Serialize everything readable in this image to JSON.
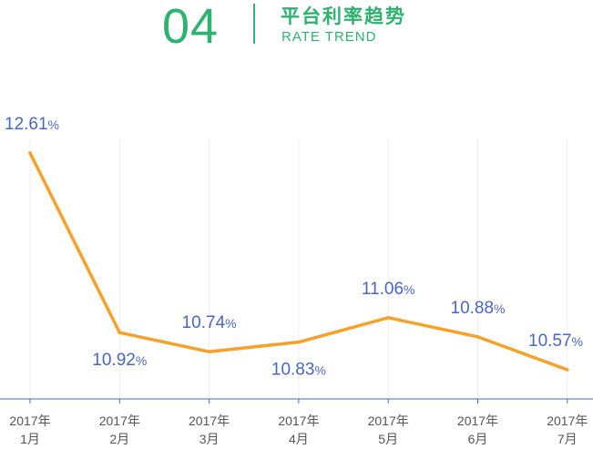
{
  "header": {
    "number": "04",
    "title": "平台利率趋势",
    "subtitle": "RATE TREND"
  },
  "colors": {
    "accent": "#2db36f",
    "line": "#f7a02a",
    "label": "#4a66c4",
    "axis": "#4a66c4",
    "grid": "#eeeeee",
    "tick_text": "#555555"
  },
  "chart_data": {
    "type": "line",
    "title": "",
    "xlabel": "",
    "ylabel": "",
    "grid": true,
    "categories": [
      [
        "2017年",
        "1月"
      ],
      [
        "2017年",
        "2月"
      ],
      [
        "2017年",
        "3月"
      ],
      [
        "2017年",
        "4月"
      ],
      [
        "2017年",
        "5月"
      ],
      [
        "2017年",
        "6月"
      ],
      [
        "2017年",
        "7月"
      ]
    ],
    "values": [
      12.61,
      10.92,
      10.74,
      10.83,
      11.06,
      10.88,
      10.57
    ],
    "value_labels": [
      "12.61",
      "10.92",
      "10.74",
      "10.83",
      "11.06",
      "10.88",
      "10.57"
    ],
    "label_suffix": "%",
    "label_positions": [
      "above",
      "below",
      "above",
      "below",
      "above",
      "above",
      "above"
    ]
  }
}
